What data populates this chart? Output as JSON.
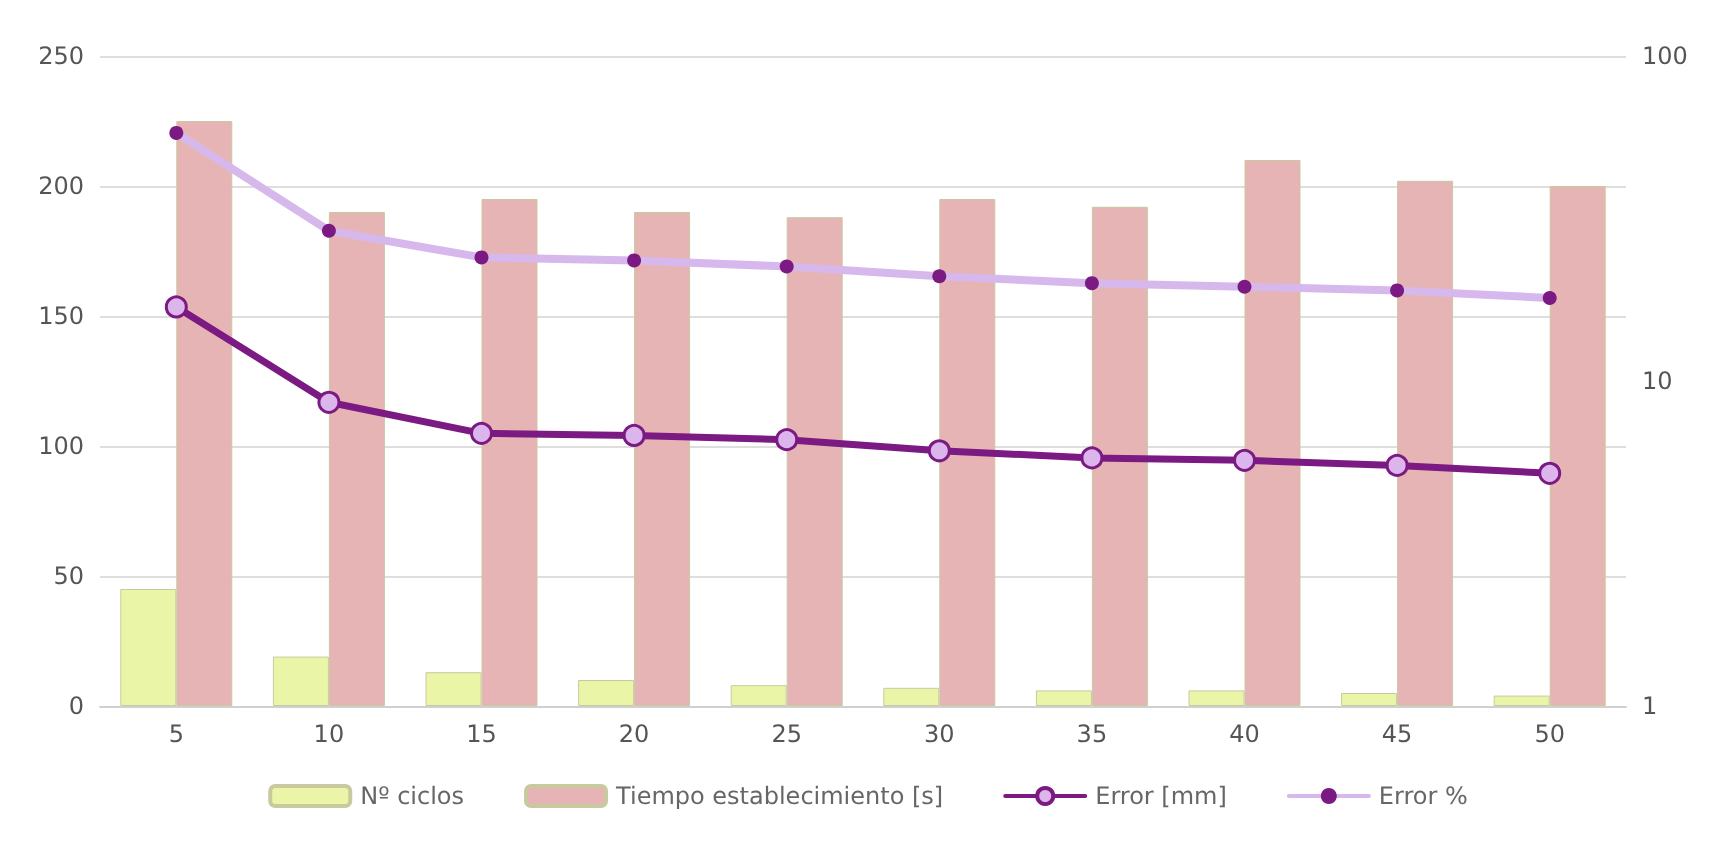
{
  "chart_data": {
    "type": "bar",
    "categories": [
      "5",
      "10",
      "15",
      "20",
      "25",
      "30",
      "35",
      "40",
      "45",
      "50"
    ],
    "series": [
      {
        "name": "Nº ciclos",
        "color": "#ebf5a8",
        "values": [
          45,
          19,
          13,
          10,
          8,
          7,
          6,
          6,
          5,
          4
        ]
      },
      {
        "name": "Tiempo establecimiento [s]",
        "color": "#e6b4b4",
        "values": [
          225,
          190,
          195,
          190,
          188,
          195,
          192,
          210,
          202,
          200
        ]
      },
      {
        "name": "Error [mm]",
        "type": "line",
        "axis": "y2",
        "color": "#7b1a82",
        "marker": "circle",
        "values": [
          16.9,
          8.6,
          6.9,
          6.8,
          6.6,
          6.1,
          5.8,
          5.7,
          5.5,
          5.2
        ]
      },
      {
        "name": "Error %",
        "type": "line",
        "axis": "y2",
        "color": "#d7b8ec",
        "marker": "circle",
        "values": [
          58,
          29,
          24,
          23.5,
          22.5,
          21,
          20,
          19.5,
          19,
          18
        ]
      }
    ],
    "ylim": [
      0,
      250
    ],
    "yticks": [
      0,
      50,
      100,
      150,
      200,
      250
    ],
    "y2lim": [
      1,
      100
    ],
    "y2ticks": [
      1,
      10,
      100
    ],
    "log": "y2",
    "grid": "y",
    "legend": "bottom"
  }
}
